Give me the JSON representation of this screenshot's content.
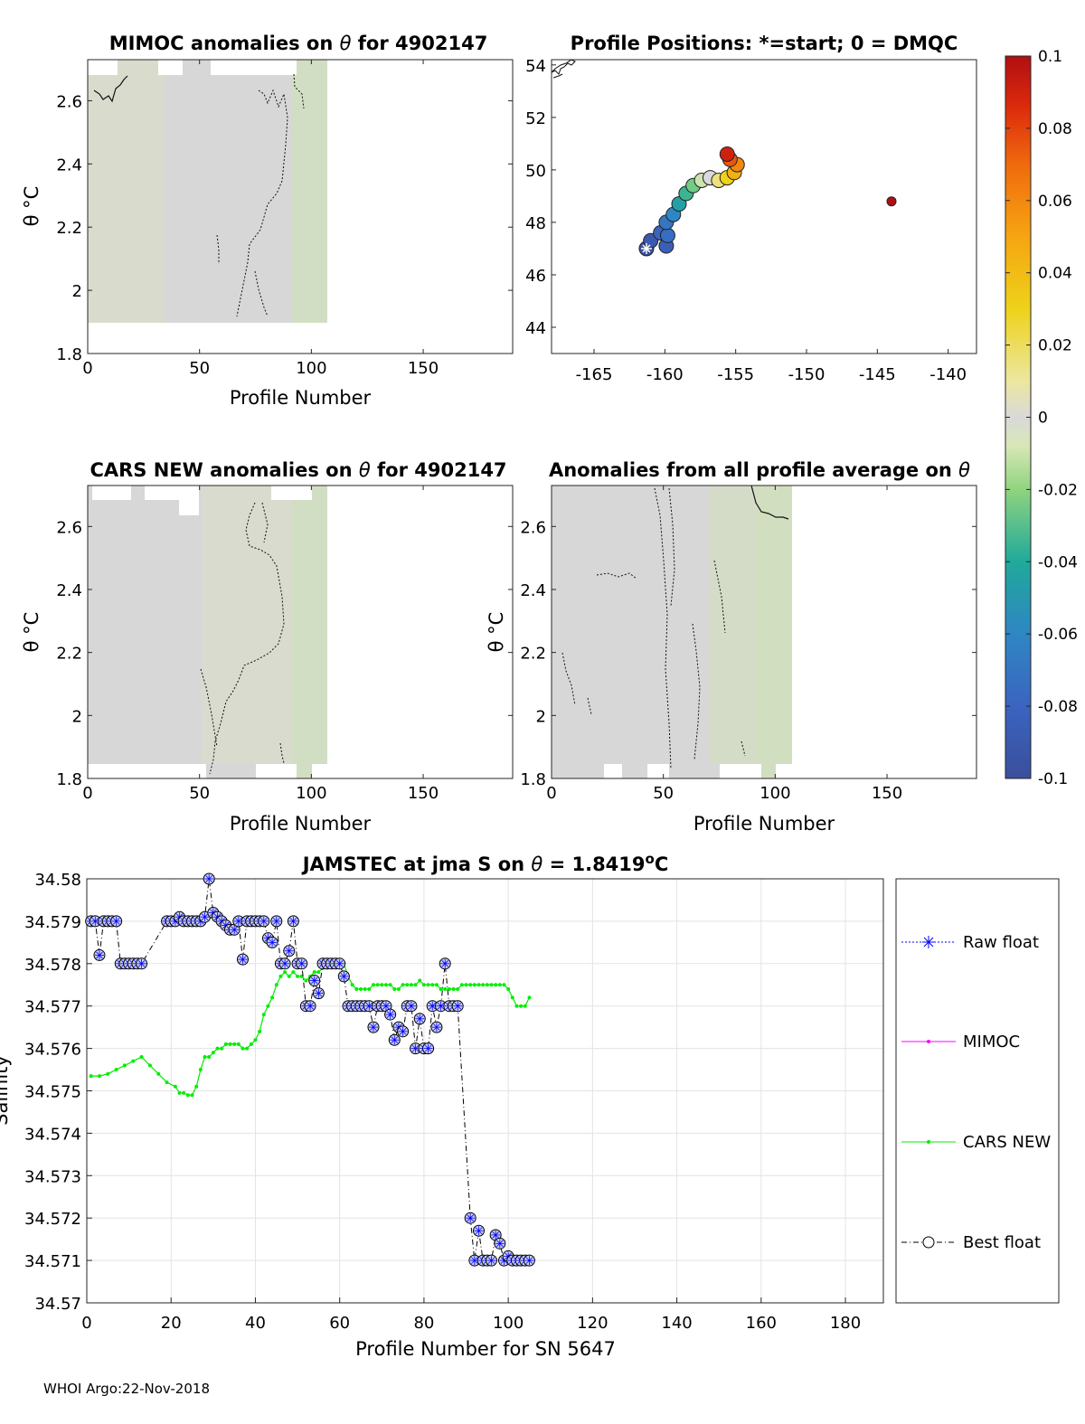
{
  "footer": "WHOI Argo:22-Nov-2018",
  "panels": {
    "mimoc": {
      "title_prefix": "MIMOC anomalies on ",
      "title_symbol": "θ",
      "title_suffix": "  for 4902147",
      "ylabel": "θ °C",
      "xlabel": "Profile Number",
      "xticks": [
        "0",
        "50",
        "100",
        "150"
      ],
      "yticks": [
        "1.8",
        "2",
        "2.2",
        "2.4",
        "2.6"
      ]
    },
    "positions": {
      "title": "Profile Positions: *=start; 0 = DMQC",
      "xticks": [
        "-165",
        "-160",
        "-155",
        "-150",
        "-145",
        "-140"
      ],
      "yticks": [
        "44",
        "46",
        "48",
        "50",
        "52",
        "54"
      ]
    },
    "cars": {
      "title_prefix": "CARS NEW anomalies on ",
      "title_symbol": "θ",
      "title_suffix": " for 4902147",
      "ylabel": "θ °C",
      "xlabel": "Profile Number",
      "xticks": [
        "0",
        "50",
        "100",
        "150"
      ],
      "yticks": [
        "1.8",
        "2",
        "2.2",
        "2.4",
        "2.6"
      ]
    },
    "allavg": {
      "title_prefix": "Anomalies from all profile average on ",
      "title_symbol": "θ",
      "ylabel": "θ °C",
      "xlabel": "Profile Number",
      "xticks": [
        "0",
        "50",
        "100",
        "150"
      ],
      "yticks": [
        "1.8",
        "2",
        "2.2",
        "2.4",
        "2.6"
      ]
    }
  },
  "colorbar": {
    "ticks": [
      "0.1",
      "0.08",
      "0.06",
      "0.04",
      "0.02",
      "0",
      "-0.02",
      "-0.04",
      "-0.06",
      "-0.08",
      "-0.1"
    ]
  },
  "chart_data": [
    {
      "type": "heatmap",
      "title": "MIMOC anomalies on θ  for 4902147",
      "xlabel": "Profile Number",
      "ylabel": "θ °C",
      "xlim": [
        0,
        190
      ],
      "ylim": [
        1.8,
        2.73
      ],
      "data_extent_profiles": [
        1,
        107
      ],
      "theta_extent": [
        1.89,
        2.7
      ],
      "anomaly_range": [
        -0.01,
        0.005
      ]
    },
    {
      "type": "scatter",
      "title": "Profile Positions: *=start; 0 = DMQC",
      "xlim": [
        -168,
        -138
      ],
      "ylim": [
        43,
        54.2
      ],
      "start_marker": {
        "lon": -161.3,
        "lat": 47.0
      },
      "track": [
        {
          "lon": -161.3,
          "lat": 47.0,
          "c": -0.1
        },
        {
          "lon": -161.0,
          "lat": 47.3,
          "c": -0.09
        },
        {
          "lon": -160.3,
          "lat": 47.6,
          "c": -0.08
        },
        {
          "lon": -159.9,
          "lat": 47.1,
          "c": -0.085
        },
        {
          "lon": -159.8,
          "lat": 47.5,
          "c": -0.075
        },
        {
          "lon": -159.9,
          "lat": 48.0,
          "c": -0.07
        },
        {
          "lon": -159.4,
          "lat": 48.3,
          "c": -0.06
        },
        {
          "lon": -159.0,
          "lat": 48.7,
          "c": -0.045
        },
        {
          "lon": -158.5,
          "lat": 49.1,
          "c": -0.035
        },
        {
          "lon": -158.0,
          "lat": 49.4,
          "c": -0.025
        },
        {
          "lon": -157.4,
          "lat": 49.6,
          "c": -0.01
        },
        {
          "lon": -156.8,
          "lat": 49.7,
          "c": 0.0
        },
        {
          "lon": -156.2,
          "lat": 49.6,
          "c": 0.015
        },
        {
          "lon": -155.6,
          "lat": 49.7,
          "c": 0.03
        },
        {
          "lon": -155.1,
          "lat": 49.9,
          "c": 0.045
        },
        {
          "lon": -154.9,
          "lat": 50.2,
          "c": 0.06
        },
        {
          "lon": -155.4,
          "lat": 50.4,
          "c": 0.075
        },
        {
          "lon": -155.6,
          "lat": 50.6,
          "c": 0.09
        },
        {
          "lon": -144.0,
          "lat": 48.8,
          "c": 0.1
        }
      ]
    },
    {
      "type": "heatmap",
      "title": "CARS NEW anomalies on θ for 4902147",
      "xlabel": "Profile Number",
      "ylabel": "θ °C",
      "xlim": [
        0,
        190
      ],
      "ylim": [
        1.8,
        2.73
      ],
      "data_extent_profiles": [
        1,
        107
      ],
      "theta_extent": [
        1.84,
        2.69
      ],
      "anomaly_range": [
        -0.01,
        0.005
      ]
    },
    {
      "type": "heatmap",
      "title": "Anomalies from all profile average on θ",
      "xlabel": "Profile Number",
      "ylabel": "θ °C",
      "xlim": [
        0,
        190
      ],
      "ylim": [
        1.8,
        2.73
      ],
      "data_extent_profiles": [
        1,
        107
      ],
      "theta_extent": [
        1.8,
        2.73
      ],
      "anomaly_range": [
        -0.01,
        0.005
      ]
    },
    {
      "type": "line",
      "title": "JAMSTEC at jma S on θ = 1.8419°C",
      "title_prefix": "JAMSTEC at jma S on ",
      "title_symbol": "θ",
      "title_value": " = 1.8419",
      "title_sup": "o",
      "title_unit": "C",
      "xlabel": "Profile Number for SN 5647",
      "ylabel": "Salinity",
      "xlim": [
        0,
        189
      ],
      "ylim": [
        34.57,
        34.58
      ],
      "xticks": [
        "0",
        "20",
        "40",
        "60",
        "80",
        "100",
        "120",
        "140",
        "160",
        "180"
      ],
      "yticks": [
        "34.57",
        "34.571",
        "34.572",
        "34.573",
        "34.574",
        "34.575",
        "34.576",
        "34.577",
        "34.578",
        "34.579",
        "34.58"
      ],
      "legend": {
        "placement": "outside-right",
        "entries": [
          "Raw float",
          "MIMOC",
          "CARS NEW",
          "Best float"
        ]
      },
      "series": [
        {
          "name": "Best float",
          "x": [
            1,
            2,
            3,
            4,
            5,
            6,
            7,
            8,
            9,
            10,
            11,
            12,
            13,
            19,
            20,
            21,
            22,
            23,
            24,
            25,
            26,
            27,
            28,
            29,
            30,
            31,
            32,
            33,
            34,
            35,
            36,
            37,
            38,
            39,
            40,
            41,
            42,
            43,
            44,
            45,
            46,
            47,
            48,
            49,
            50,
            51,
            52,
            53,
            54,
            55,
            56,
            57,
            58,
            59,
            60,
            61,
            62,
            63,
            64,
            65,
            66,
            67,
            68,
            69,
            70,
            71,
            72,
            73,
            74,
            75,
            76,
            77,
            78,
            79,
            80,
            81,
            82,
            83,
            84,
            85,
            86,
            87,
            88,
            91,
            92,
            93,
            94,
            95,
            96,
            97,
            98,
            99,
            100,
            101,
            102,
            103,
            104,
            105
          ],
          "values": [
            34.579,
            34.579,
            34.5782,
            34.579,
            34.579,
            34.579,
            34.579,
            34.578,
            34.578,
            34.578,
            34.578,
            34.578,
            34.578,
            34.579,
            34.579,
            34.579,
            34.5791,
            34.579,
            34.579,
            34.579,
            34.579,
            34.579,
            34.5791,
            34.58,
            34.5792,
            34.5791,
            34.579,
            34.5789,
            34.5788,
            34.5788,
            34.579,
            34.5781,
            34.579,
            34.579,
            34.579,
            34.579,
            34.579,
            34.5786,
            34.5785,
            34.579,
            34.578,
            34.578,
            34.5783,
            34.579,
            34.578,
            34.578,
            34.577,
            34.577,
            34.5776,
            34.5773,
            34.578,
            34.578,
            34.578,
            34.578,
            34.578,
            34.5777,
            34.577,
            34.577,
            34.577,
            34.577,
            34.577,
            34.577,
            34.5765,
            34.577,
            34.577,
            34.577,
            34.5768,
            34.5762,
            34.5765,
            34.5764,
            34.577,
            34.577,
            34.576,
            34.5767,
            34.576,
            34.576,
            34.577,
            34.5765,
            34.577,
            34.578,
            34.577,
            34.577,
            34.577,
            34.572,
            34.571,
            34.5717,
            34.571,
            34.571,
            34.571,
            34.5716,
            34.5714,
            34.571,
            34.5711,
            34.571,
            34.571,
            34.571,
            34.571,
            34.571
          ]
        },
        {
          "name": "CARS NEW",
          "x": [
            1,
            3,
            5,
            7,
            9,
            11,
            13,
            15,
            17,
            19,
            21,
            22,
            23,
            24,
            25,
            26,
            27,
            28,
            29,
            30,
            31,
            32,
            33,
            34,
            35,
            36,
            37,
            38,
            39,
            40,
            41,
            42,
            43,
            44,
            45,
            46,
            47,
            48,
            49,
            50,
            51,
            52,
            53,
            54,
            55,
            56,
            57,
            58,
            59,
            60,
            61,
            62,
            63,
            64,
            65,
            66,
            67,
            68,
            69,
            70,
            71,
            72,
            73,
            74,
            75,
            76,
            77,
            78,
            79,
            80,
            81,
            82,
            83,
            84,
            85,
            86,
            87,
            88,
            89,
            90,
            91,
            92,
            93,
            94,
            95,
            96,
            97,
            98,
            99,
            100,
            101,
            102,
            103,
            104,
            105
          ],
          "values": [
            34.57535,
            34.57535,
            34.5754,
            34.5755,
            34.5756,
            34.5757,
            34.5758,
            34.5756,
            34.5754,
            34.5752,
            34.5751,
            34.57495,
            34.57495,
            34.5749,
            34.5749,
            34.5751,
            34.5755,
            34.5758,
            34.5758,
            34.5759,
            34.576,
            34.576,
            34.5761,
            34.5761,
            34.5761,
            34.5761,
            34.576,
            34.576,
            34.5761,
            34.5762,
            34.5764,
            34.5768,
            34.577,
            34.5772,
            34.5775,
            34.5777,
            34.5778,
            34.5777,
            34.5778,
            34.5777,
            34.5777,
            34.5776,
            34.5777,
            34.5778,
            34.5778,
            34.5779,
            34.5779,
            34.578,
            34.578,
            34.578,
            34.578,
            34.5777,
            34.5775,
            34.5774,
            34.5774,
            34.5774,
            34.5774,
            34.5775,
            34.5775,
            34.5775,
            34.5775,
            34.5775,
            34.5774,
            34.5774,
            34.5775,
            34.5775,
            34.5775,
            34.5775,
            34.5776,
            34.5775,
            34.5775,
            34.5775,
            34.5775,
            34.5774,
            34.5774,
            34.5774,
            34.5774,
            34.5774,
            34.5775,
            34.5775,
            34.5775,
            34.5775,
            34.5775,
            34.5775,
            34.5775,
            34.5775,
            34.5775,
            34.5775,
            34.5775,
            34.5774,
            34.5772,
            34.577,
            34.577,
            34.577,
            34.5772
          ]
        },
        {
          "name": "MIMOC",
          "x": [],
          "values": []
        },
        {
          "name": "Raw float",
          "x": [],
          "values": []
        }
      ]
    }
  ]
}
